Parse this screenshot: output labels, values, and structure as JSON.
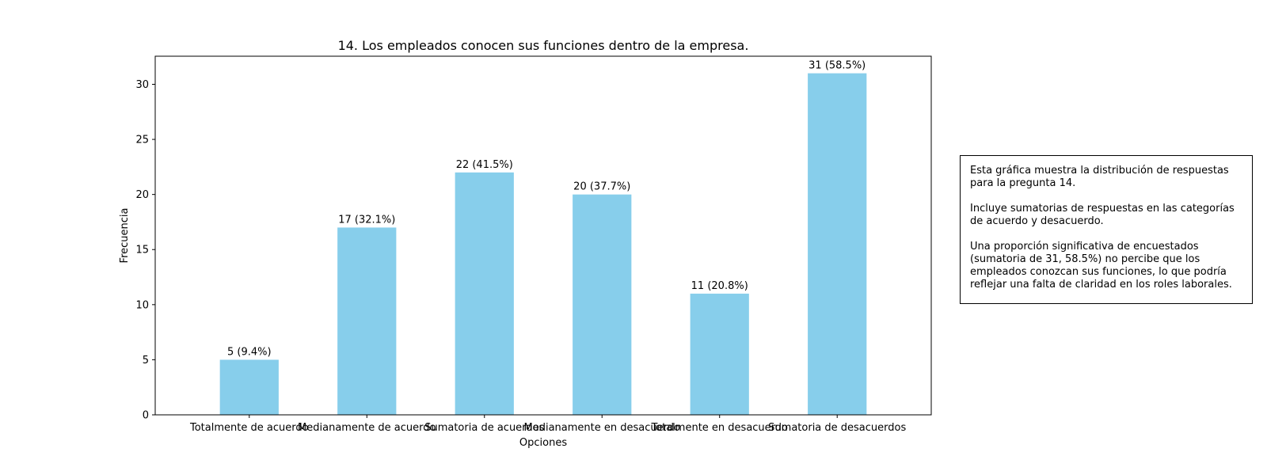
{
  "chart_data": {
    "type": "bar",
    "title": "14. Los empleados conocen sus funciones dentro de la empresa.",
    "xlabel": "Opciones",
    "ylabel": "Frecuencia",
    "categories": [
      "Totalmente de acuerdo",
      "Medianamente de acuerdo",
      "Sumatoria de acuerdos",
      "Medianamente en desacuerdo",
      "Totalmente en desacuerdo",
      "Sumatoria de desacuerdos"
    ],
    "values": [
      5,
      17,
      22,
      20,
      11,
      31
    ],
    "data_labels": [
      "5 (9.4%)",
      "17 (32.1%)",
      "22 (41.5%)",
      "20 (37.7%)",
      "11 (20.8%)",
      "31 (58.5%)"
    ],
    "yticks": [
      0,
      5,
      10,
      15,
      20,
      25,
      30
    ],
    "ylim": [
      0,
      32.55
    ],
    "grid": false,
    "bar_color": "#87ceeb"
  },
  "annotation": {
    "paragraphs": [
      "Esta gráfica muestra la distribución de respuestas para la pregunta 14.",
      "Incluye sumatorias de respuestas en las categorías de acuerdo y desacuerdo.",
      "Una proporción significativa de encuestados (sumatoria de 31, 58.5%) no percibe que los empleados conozcan sus funciones, lo que podría reflejar una falta de claridad en los roles laborales."
    ]
  }
}
